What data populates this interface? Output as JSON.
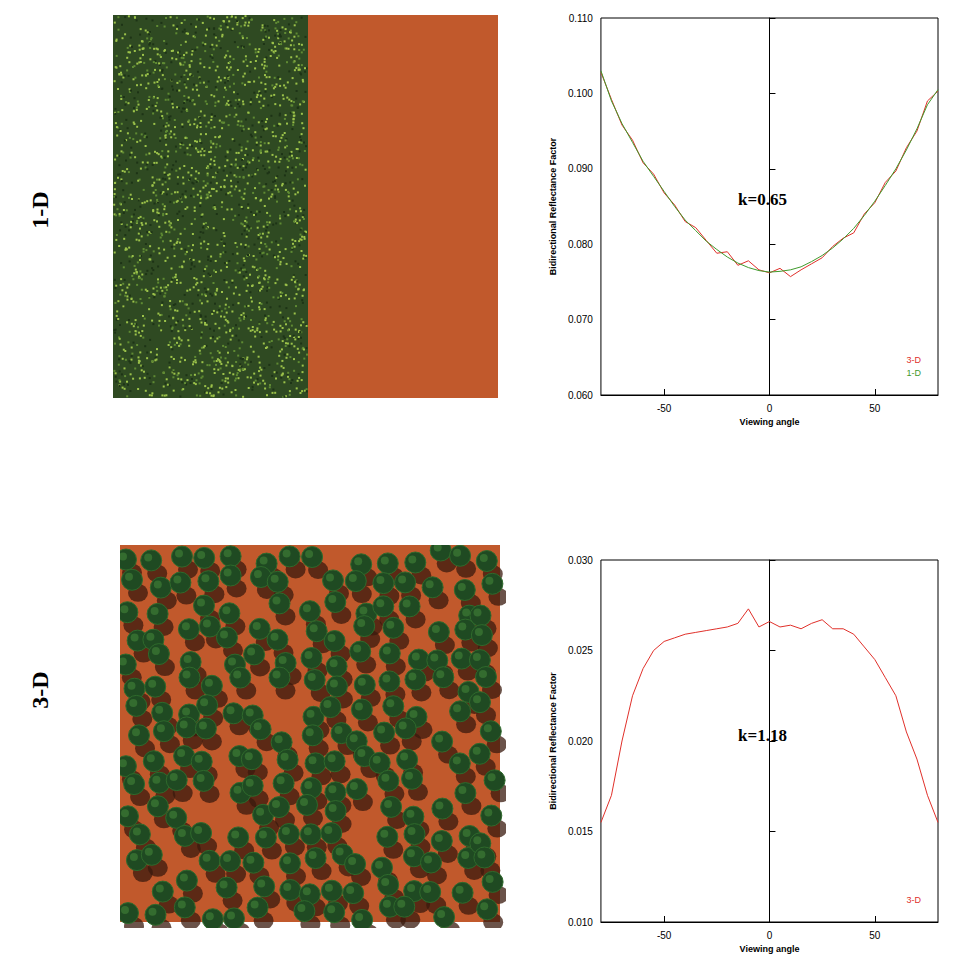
{
  "chart_data": [
    {
      "type": "line",
      "title": "1-D",
      "xlabel": "Viewing angle",
      "ylabel": "Bidirectional Reflectance Factor",
      "annotations": [
        "k=0.65"
      ],
      "x": [
        -80,
        -75,
        -70,
        -65,
        -60,
        -55,
        -50,
        -45,
        -40,
        -35,
        -30,
        -25,
        -20,
        -15,
        -10,
        -5,
        0,
        5,
        10,
        15,
        20,
        25,
        30,
        35,
        40,
        45,
        50,
        55,
        60,
        65,
        70,
        75,
        80
      ],
      "series": [
        {
          "name": "3-D",
          "color": "#e0302a",
          "values": [
            0.1028,
            0.0992,
            0.0958,
            0.0938,
            0.0908,
            0.0893,
            0.0868,
            0.0852,
            0.083,
            0.0822,
            0.0805,
            0.0788,
            0.079,
            0.0772,
            0.0778,
            0.0766,
            0.0762,
            0.0768,
            0.0757,
            0.0766,
            0.0774,
            0.0782,
            0.0797,
            0.0808,
            0.0815,
            0.084,
            0.0855,
            0.0882,
            0.0897,
            0.0928,
            0.095,
            0.099,
            0.1003
          ]
        },
        {
          "name": "1-D",
          "color": "#3f9a2c",
          "values": [
            0.103,
            0.099,
            0.096,
            0.0935,
            0.091,
            0.089,
            0.087,
            0.085,
            0.0832,
            0.0818,
            0.0804,
            0.0793,
            0.0783,
            0.0775,
            0.0769,
            0.0765,
            0.0763,
            0.0764,
            0.0766,
            0.077,
            0.0777,
            0.0785,
            0.0795,
            0.0807,
            0.0821,
            0.0838,
            0.0857,
            0.0878,
            0.09,
            0.0925,
            0.0953,
            0.0985,
            0.1005
          ]
        }
      ],
      "xlim": [
        -80,
        80
      ],
      "xticks": [
        -50,
        0,
        50
      ],
      "ylim": [
        0.06,
        0.11
      ],
      "yticks": [
        {
          "value": 0.06,
          "label": "0.060"
        },
        {
          "value": 0.07,
          "label": "0.070"
        },
        {
          "value": 0.08,
          "label": "0.080"
        },
        {
          "value": 0.09,
          "label": "0.090"
        },
        {
          "value": 0.1,
          "label": "0.100"
        },
        {
          "value": 0.11,
          "label": "0.110"
        }
      ],
      "grid": false,
      "legend": "lower right"
    },
    {
      "type": "line",
      "title": "3-D",
      "xlabel": "Viewing angle",
      "ylabel": "Bidirectional Reflectance Factor",
      "annotations": [
        "k=1.18"
      ],
      "x": [
        -80,
        -75,
        -70,
        -65,
        -60,
        -55,
        -50,
        -45,
        -40,
        -35,
        -30,
        -25,
        -20,
        -15,
        -10,
        -5,
        0,
        5,
        10,
        15,
        20,
        25,
        30,
        35,
        40,
        45,
        50,
        55,
        60,
        65,
        70,
        75,
        80
      ],
      "series": [
        {
          "name": "3-D",
          "color": "#e0302a",
          "values": [
            0.0155,
            0.017,
            0.02,
            0.0225,
            0.024,
            0.025,
            0.0255,
            0.0257,
            0.0259,
            0.026,
            0.0261,
            0.0262,
            0.0263,
            0.0265,
            0.0273,
            0.0263,
            0.0266,
            0.0263,
            0.0264,
            0.0262,
            0.0265,
            0.0267,
            0.0262,
            0.0262,
            0.0259,
            0.0252,
            0.0245,
            0.0235,
            0.0225,
            0.0205,
            0.019,
            0.017,
            0.0155
          ]
        }
      ],
      "xlim": [
        -80,
        80
      ],
      "xticks": [
        -50,
        0,
        50
      ],
      "ylim": [
        0.01,
        0.03
      ],
      "yticks": [
        {
          "value": 0.01,
          "label": "0.010"
        },
        {
          "value": 0.015,
          "label": "0.015"
        },
        {
          "value": 0.02,
          "label": "0.020"
        },
        {
          "value": 0.025,
          "label": "0.025"
        },
        {
          "value": 0.03,
          "label": "0.030"
        }
      ],
      "grid": false,
      "legend": "lower right"
    }
  ]
}
